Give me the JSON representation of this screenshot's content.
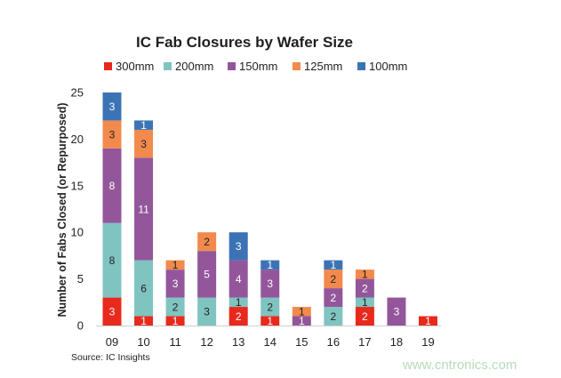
{
  "chart_data": {
    "type": "bar",
    "stacked": true,
    "title": "IC Fab Closures by Wafer Size",
    "xlabel": "",
    "ylabel": "Number of Fabs Closed (or Repurposed)",
    "categories": [
      "09",
      "10",
      "11",
      "12",
      "13",
      "14",
      "15",
      "16",
      "17",
      "18",
      "19"
    ],
    "ylim": [
      0,
      25
    ],
    "yticks": [
      0,
      5,
      10,
      15,
      20,
      25
    ],
    "grid": false,
    "legend_position": "top",
    "series": [
      {
        "name": "300mm",
        "color": "#e8291c",
        "label_color": "#ffffff",
        "values": [
          3,
          1,
          1,
          0,
          2,
          1,
          0,
          0,
          2,
          0,
          1
        ]
      },
      {
        "name": "200mm",
        "color": "#7fc4c0",
        "label_color": "#222222",
        "values": [
          8,
          6,
          2,
          3,
          1,
          2,
          0,
          2,
          1,
          0,
          0
        ]
      },
      {
        "name": "150mm",
        "color": "#93569b",
        "label_color": "#ffffff",
        "values": [
          8,
          11,
          3,
          5,
          4,
          3,
          1,
          2,
          2,
          3,
          0
        ]
      },
      {
        "name": "125mm",
        "color": "#f28a4d",
        "label_color": "#222222",
        "values": [
          3,
          3,
          1,
          2,
          0,
          0,
          1,
          2,
          1,
          0,
          0
        ]
      },
      {
        "name": "100mm",
        "color": "#3c73b5",
        "label_color": "#ffffff",
        "values": [
          3,
          1,
          0,
          0,
          3,
          1,
          0,
          1,
          0,
          0,
          0
        ]
      }
    ]
  },
  "footer": {
    "source": "Source:  IC Insights",
    "watermark": "www.cntronics.com"
  }
}
